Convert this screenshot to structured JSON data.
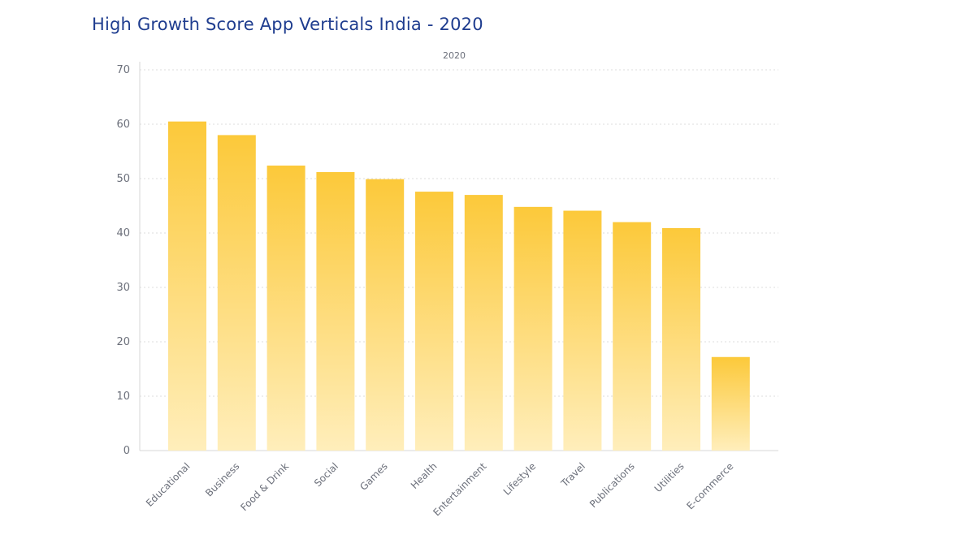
{
  "chart_data": {
    "type": "bar",
    "title": "High Growth Score App Verticals India - 2020",
    "xlabel": "",
    "ylabel": "",
    "ylim": [
      0,
      70
    ],
    "yticks": [
      0,
      10,
      20,
      30,
      40,
      50,
      60,
      70
    ],
    "grid": true,
    "categories": [
      "Educational",
      "Business",
      "Food & Drink",
      "Social",
      "Games",
      "Health",
      "Entertainment",
      "Lifestyle",
      "Travel",
      "Publications",
      "Utilities",
      "E-commerce"
    ],
    "series": [
      {
        "name": "2020",
        "values": [
          60.5,
          58.0,
          52.4,
          51.2,
          49.9,
          47.6,
          47.0,
          44.8,
          44.1,
          42.0,
          40.9,
          17.2
        ]
      }
    ],
    "colors": {
      "bar_top": "#fcc93a",
      "bar_bottom": "#ffeebb",
      "title": "#1f3d8f",
      "grid": "#dddddd",
      "axis": "#d7d7d7",
      "text": "#6b6f7a"
    }
  }
}
